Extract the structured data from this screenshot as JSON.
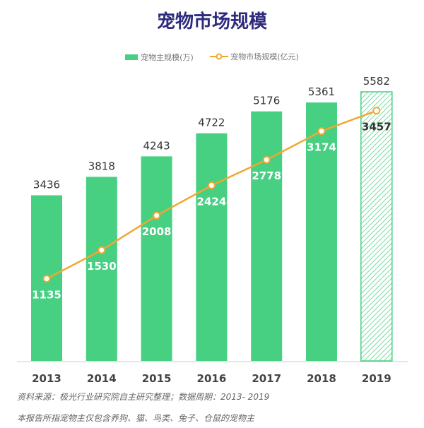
{
  "chart_data": {
    "type": "bar",
    "title": "宠物市场规模",
    "categories": [
      "2013",
      "2014",
      "2015",
      "2016",
      "2017",
      "2018",
      "2019"
    ],
    "series": [
      {
        "name": "宠物主规模(万)",
        "type": "bar",
        "values": [
          3436,
          3818,
          4243,
          4722,
          5176,
          5361,
          5582
        ],
        "color": "#47cf82",
        "hatched_last": true
      },
      {
        "name": "宠物市场规模(亿元)",
        "type": "line",
        "values": [
          1135,
          1530,
          2008,
          2424,
          2778,
          3174,
          3457
        ],
        "color": "#f0a830"
      }
    ],
    "bar_ylim": [
      0,
      5582
    ],
    "line_ylim": [
      0,
      3717
    ],
    "legend_position": "top-center",
    "grid": false
  },
  "notes": {
    "source": "资料来源：极光行业研究院自主研究整理；数据周期：2013- 2019",
    "scope": "本报告所指宠物主仅包含养狗、猫、鸟类、兔子、仓鼠的宠物主"
  }
}
